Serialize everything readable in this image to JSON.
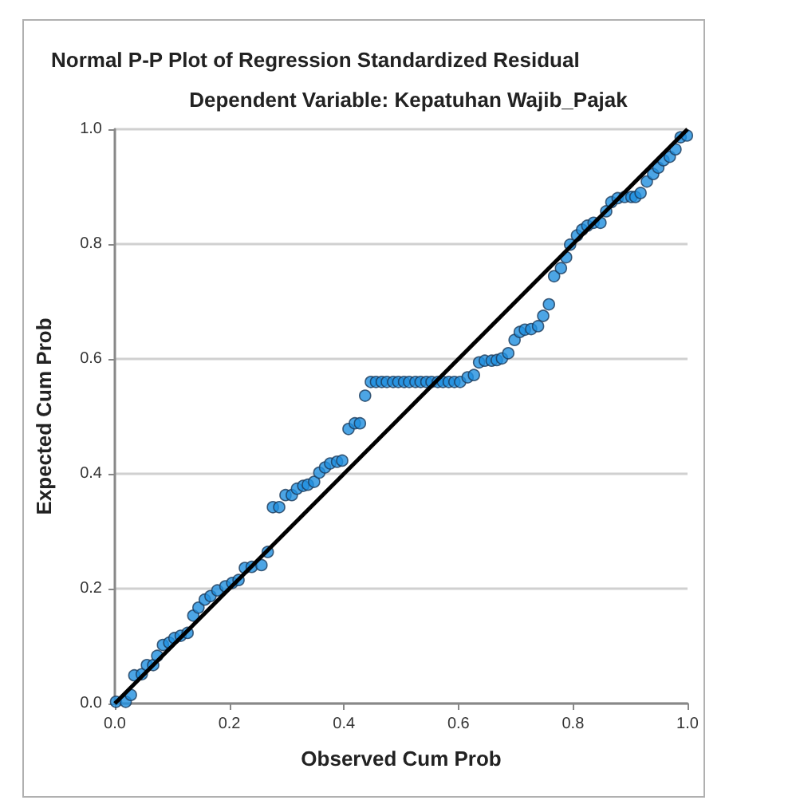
{
  "chart_data": {
    "type": "scatter",
    "title": "Normal P-P Plot of Regression Standardized Residual",
    "subtitle": "Dependent Variable: Kepatuhan Wajib_Pajak",
    "xlabel": "Observed Cum Prob",
    "ylabel": "Expected Cum Prob",
    "xlim": [
      0,
      1
    ],
    "ylim": [
      0,
      1
    ],
    "xticks": [
      {
        "value": 0,
        "label": "0.0"
      },
      {
        "value": 0.2,
        "label": "0.2"
      },
      {
        "value": 0.4,
        "label": "0.4"
      },
      {
        "value": 0.6,
        "label": "0.6"
      },
      {
        "value": 0.8,
        "label": "0.8"
      },
      {
        "value": 1,
        "label": "1.0"
      }
    ],
    "yticks": [
      {
        "value": 0,
        "label": "0.0"
      },
      {
        "value": 0.2,
        "label": "0.2"
      },
      {
        "value": 0.4,
        "label": "0.4"
      },
      {
        "value": 0.6,
        "label": "0.6"
      },
      {
        "value": 0.8,
        "label": "0.8"
      },
      {
        "value": 1,
        "label": "1.0"
      }
    ],
    "grid": "y",
    "marker": "circle",
    "series": [
      {
        "color": "#1f8fde",
        "x": [
          0.002,
          0.019,
          0.028,
          0.034,
          0.047,
          0.056,
          0.067,
          0.074,
          0.084,
          0.095,
          0.104,
          0.115,
          0.127,
          0.137,
          0.146,
          0.157,
          0.167,
          0.179,
          0.193,
          0.205,
          0.216,
          0.227,
          0.239,
          0.256,
          0.267,
          0.276,
          0.287,
          0.298,
          0.309,
          0.318,
          0.329,
          0.337,
          0.348,
          0.357,
          0.367,
          0.376,
          0.388,
          0.397,
          0.408,
          0.419,
          0.428,
          0.437,
          0.447,
          0.456,
          0.466,
          0.475,
          0.486,
          0.495,
          0.505,
          0.514,
          0.525,
          0.534,
          0.544,
          0.553,
          0.564,
          0.573,
          0.583,
          0.593,
          0.603,
          0.616,
          0.627,
          0.636,
          0.646,
          0.658,
          0.667,
          0.676,
          0.687,
          0.698,
          0.707,
          0.716,
          0.727,
          0.739,
          0.748,
          0.758,
          0.767,
          0.779,
          0.788,
          0.795,
          0.807,
          0.816,
          0.825,
          0.836,
          0.848,
          0.858,
          0.867,
          0.878,
          0.89,
          0.902,
          0.909,
          0.918,
          0.929,
          0.94,
          0.949,
          0.958,
          0.969,
          0.979,
          0.988,
          0.999
        ],
        "values": [
          0.003,
          0.003,
          0.015,
          0.049,
          0.051,
          0.067,
          0.067,
          0.083,
          0.102,
          0.106,
          0.114,
          0.118,
          0.123,
          0.153,
          0.167,
          0.181,
          0.187,
          0.197,
          0.204,
          0.21,
          0.215,
          0.236,
          0.238,
          0.241,
          0.264,
          0.342,
          0.342,
          0.363,
          0.363,
          0.374,
          0.379,
          0.381,
          0.386,
          0.402,
          0.411,
          0.418,
          0.421,
          0.423,
          0.478,
          0.488,
          0.488,
          0.536,
          0.56,
          0.56,
          0.56,
          0.56,
          0.56,
          0.56,
          0.56,
          0.56,
          0.56,
          0.56,
          0.56,
          0.56,
          0.56,
          0.56,
          0.56,
          0.56,
          0.56,
          0.568,
          0.572,
          0.594,
          0.597,
          0.597,
          0.598,
          0.601,
          0.61,
          0.633,
          0.647,
          0.651,
          0.652,
          0.657,
          0.675,
          0.695,
          0.744,
          0.758,
          0.777,
          0.799,
          0.815,
          0.825,
          0.832,
          0.837,
          0.837,
          0.857,
          0.873,
          0.88,
          0.882,
          0.882,
          0.882,
          0.889,
          0.909,
          0.922,
          0.933,
          0.946,
          0.952,
          0.965,
          0.986,
          0.989
        ]
      },
      {
        "type": "line",
        "color": "#000000",
        "x": [
          0,
          1
        ],
        "values": [
          0,
          1
        ],
        "marker": "none",
        "line_style": "solid"
      }
    ]
  }
}
